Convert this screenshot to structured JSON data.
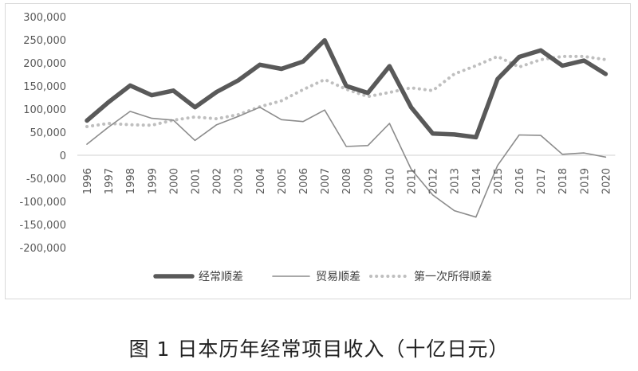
{
  "caption": "图 1 日本历年经常项目收入（十亿日元）",
  "chart_data": {
    "type": "line",
    "categories": [
      "1996",
      "1997",
      "1998",
      "1999",
      "2000",
      "2001",
      "2002",
      "2003",
      "2004",
      "2005",
      "2006",
      "2007",
      "2008",
      "2009",
      "2010",
      "2011",
      "2012",
      "2013",
      "2014",
      "2015",
      "2016",
      "2017",
      "2018",
      "2019",
      "2020"
    ],
    "ylim": [
      -200000,
      300000
    ],
    "yticks": [
      300000,
      250000,
      200000,
      150000,
      100000,
      50000,
      0,
      -50000,
      -100000,
      -150000,
      -200000
    ],
    "ytick_labels": [
      "300,000",
      "250,000",
      "200,000",
      "150,000",
      "100,000",
      "50,000",
      "0",
      "-50,000",
      "-100,000",
      "-150,000",
      "-200,000"
    ],
    "grid": false,
    "legend_position": "bottom",
    "series": [
      {
        "name": "经常顺差",
        "color": "#595959",
        "style": "thick",
        "values": [
          75000,
          115000,
          151000,
          130000,
          140000,
          104000,
          137000,
          162000,
          196000,
          187000,
          203000,
          249000,
          150000,
          135000,
          193000,
          104000,
          47000,
          45000,
          39000,
          165000,
          213000,
          227000,
          194000,
          205000,
          176000
        ]
      },
      {
        "name": "贸易顺差",
        "color": "#8c8c8c",
        "style": "thin",
        "values": [
          24000,
          61000,
          95000,
          80000,
          76000,
          32000,
          66000,
          84000,
          104000,
          77000,
          73000,
          98000,
          19000,
          21000,
          69000,
          -30000,
          -86000,
          -120000,
          -134000,
          -22000,
          44000,
          43000,
          2000,
          5000,
          -4000
        ]
      },
      {
        "name": "第一次所得顺差",
        "color": "#bfbfbf",
        "style": "dotted",
        "values": [
          62000,
          69000,
          66000,
          65000,
          76000,
          83000,
          79000,
          88000,
          105000,
          118000,
          142000,
          164000,
          143000,
          127000,
          136000,
          146000,
          140000,
          176000,
          194000,
          214000,
          191000,
          207000,
          214000,
          214000,
          207000
        ]
      }
    ]
  }
}
